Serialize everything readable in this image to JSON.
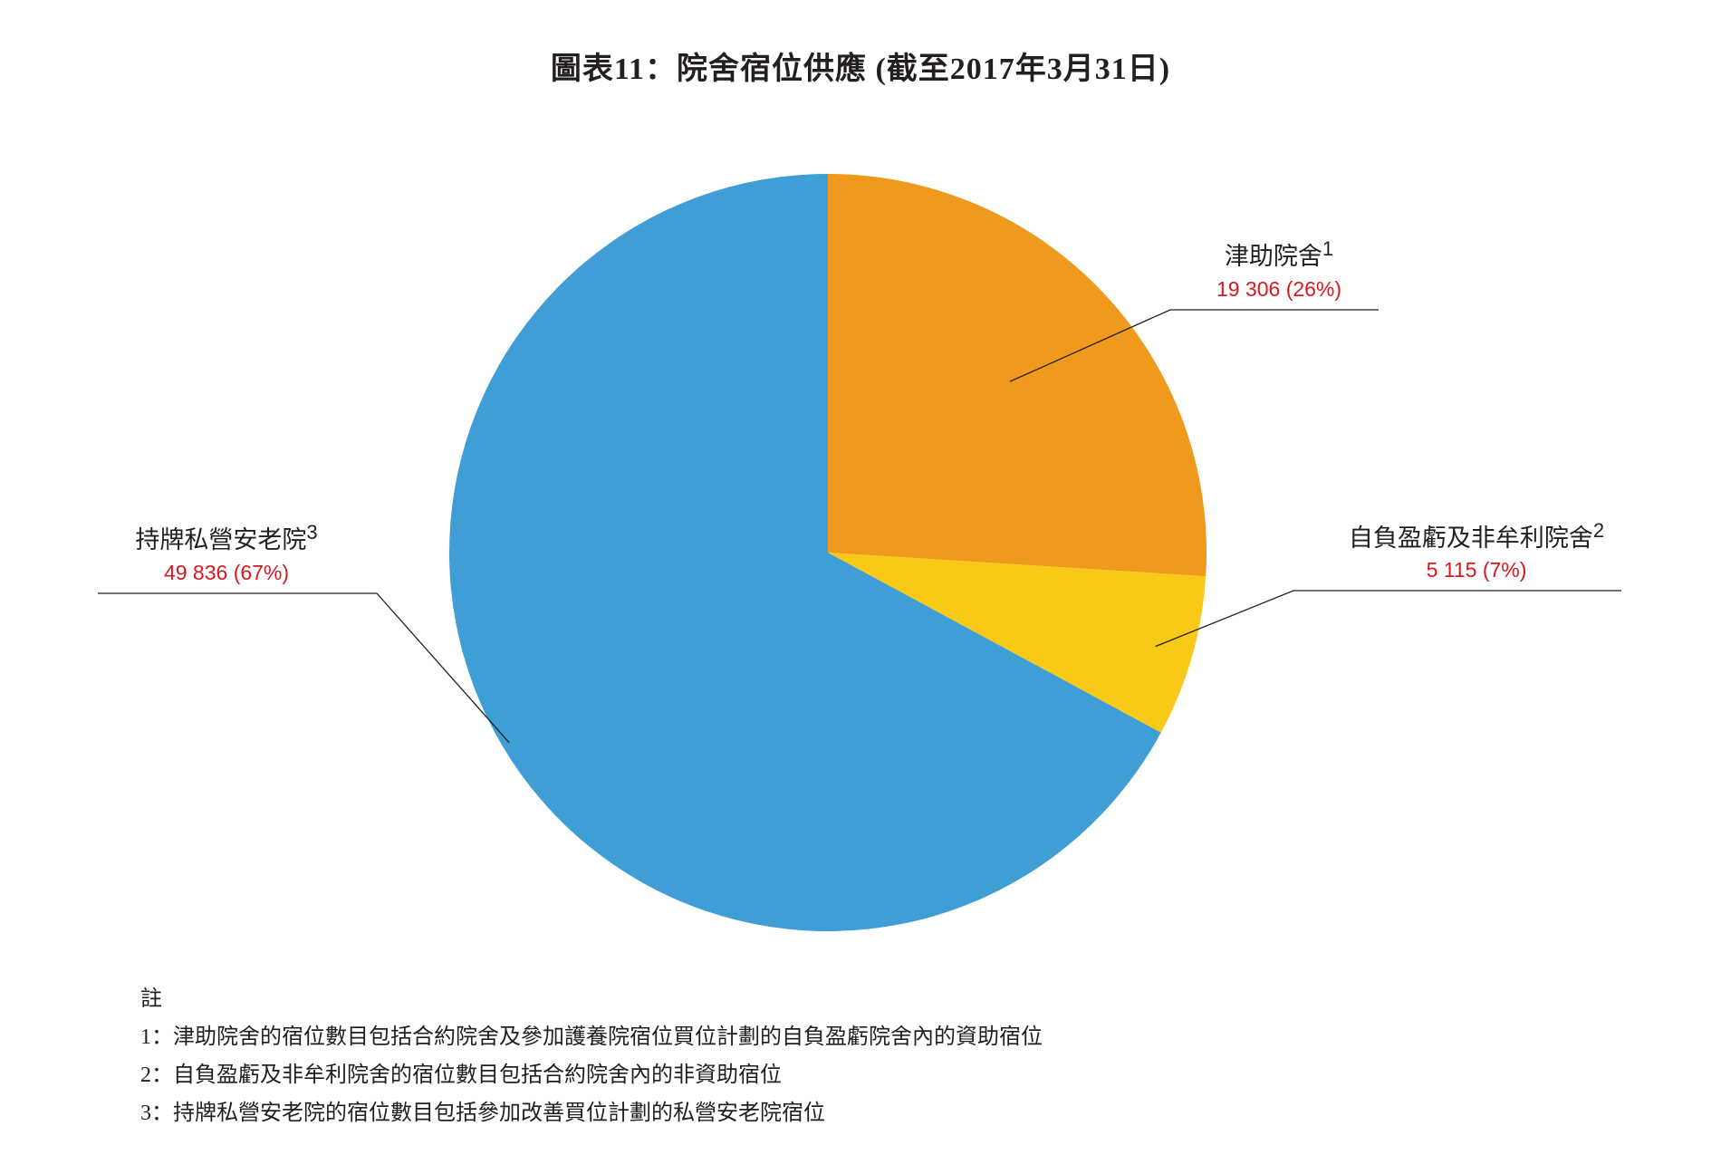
{
  "chart_data": {
    "type": "pie",
    "title": "圖表11：院舍宿位供應 (截至2017年3月31日)",
    "slices": [
      {
        "label": "津助院舍",
        "sup": "1",
        "value": 19306,
        "value_label": "19 306 (26%)",
        "percent": 26,
        "color": "#ef9a1c"
      },
      {
        "label": "自負盈虧及非牟利院舍",
        "sup": "2",
        "value": 5115,
        "value_label": "5 115 (7%)",
        "percent": 7,
        "color": "#f9c917"
      },
      {
        "label": "持牌私營安老院",
        "sup": "3",
        "value": 49836,
        "value_label": "49 836 (67%)",
        "percent": 67,
        "color": "#3f9ed5"
      }
    ]
  },
  "notes": {
    "heading": "註",
    "items": [
      "1：津助院舍的宿位數目包括合約院舍及參加護養院宿位買位計劃的自負盈虧院舍內的資助宿位",
      "2：自負盈虧及非牟利院舍的宿位數目包括合約院舍內的非資助宿位",
      "3：持牌私營安老院的宿位數目包括參加改善買位計劃的私營安老院宿位"
    ]
  }
}
